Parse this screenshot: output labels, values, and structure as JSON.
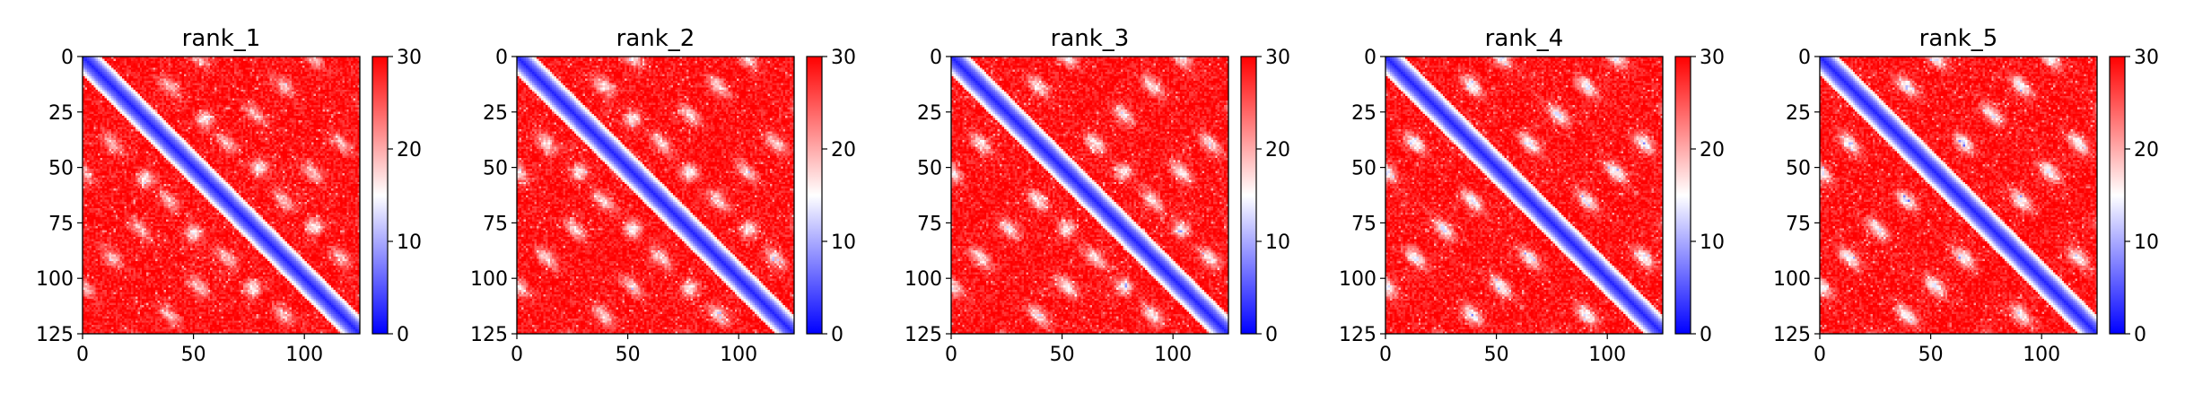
{
  "chart_data": [
    {
      "type": "heatmap",
      "title": "rank_1",
      "xlim": [
        0,
        125
      ],
      "ylim": [
        125,
        0
      ],
      "x_ticks": [
        0,
        50,
        100
      ],
      "y_ticks": [
        0,
        25,
        50,
        75,
        100,
        125
      ],
      "colorbar": {
        "min": 0,
        "max": 30,
        "ticks": [
          0,
          10,
          20,
          30
        ],
        "colors": [
          "#0000ff",
          "#ffffff",
          "#ff0000"
        ]
      },
      "cell_count": 126,
      "diagonal_band": "blue, ~value 2-8 near diagonal",
      "off_diagonal_hotspots": [
        [
          28,
          55
        ],
        [
          50,
          80
        ],
        [
          77,
          105
        ],
        [
          55,
          28
        ],
        [
          80,
          50
        ],
        [
          105,
          77
        ]
      ],
      "hotspot_value": 10
    },
    {
      "type": "heatmap",
      "title": "rank_2",
      "xlim": [
        0,
        125
      ],
      "ylim": [
        125,
        0
      ],
      "x_ticks": [
        0,
        50,
        100
      ],
      "y_ticks": [
        0,
        25,
        50,
        75,
        100,
        125
      ],
      "colorbar": {
        "min": 0,
        "max": 30,
        "ticks": [
          0,
          10,
          20,
          30
        ],
        "colors": [
          "#0000ff",
          "#ffffff",
          "#ff0000"
        ]
      },
      "cell_count": 126,
      "diagonal_band": "blue, ~value 2-8 near diagonal",
      "off_diagonal_hotspots": [
        [
          28,
          52
        ],
        [
          52,
          78
        ],
        [
          78,
          105
        ],
        [
          52,
          28
        ],
        [
          78,
          52
        ],
        [
          105,
          78
        ]
      ],
      "hotspot_value": 12
    },
    {
      "type": "heatmap",
      "title": "rank_3",
      "xlim": [
        0,
        125
      ],
      "ylim": [
        125,
        0
      ],
      "x_ticks": [
        0,
        50,
        100
      ],
      "y_ticks": [
        0,
        25,
        50,
        75,
        100,
        125
      ],
      "colorbar": {
        "min": 0,
        "max": 30,
        "ticks": [
          0,
          10,
          20,
          30
        ],
        "colors": [
          "#0000ff",
          "#ffffff",
          "#ff0000"
        ]
      },
      "cell_count": 126,
      "diagonal_band": "blue, ~value 2-8 near diagonal",
      "off_diagonal_hotspots": [
        [
          52,
          78
        ],
        [
          78,
          104
        ],
        [
          78,
          52
        ],
        [
          104,
          78
        ]
      ],
      "hotspot_value": 13
    },
    {
      "type": "heatmap",
      "title": "rank_4",
      "xlim": [
        0,
        125
      ],
      "ylim": [
        125,
        0
      ],
      "x_ticks": [
        0,
        50,
        100
      ],
      "y_ticks": [
        0,
        25,
        50,
        75,
        100,
        125
      ],
      "colorbar": {
        "min": 0,
        "max": 30,
        "ticks": [
          0,
          10,
          20,
          30
        ],
        "colors": [
          "#0000ff",
          "#ffffff",
          "#ff0000"
        ]
      },
      "cell_count": 126,
      "diagonal_band": "blue, ~value 2-8 near diagonal",
      "off_diagonal_hotspots": [],
      "hotspot_value": 15
    },
    {
      "type": "heatmap",
      "title": "rank_5",
      "xlim": [
        0,
        125
      ],
      "ylim": [
        125,
        0
      ],
      "x_ticks": [
        0,
        50,
        100
      ],
      "y_ticks": [
        0,
        25,
        50,
        75,
        100,
        125
      ],
      "colorbar": {
        "min": 0,
        "max": 30,
        "ticks": [
          0,
          10,
          20,
          30
        ],
        "colors": [
          "#0000ff",
          "#ffffff",
          "#ff0000"
        ]
      },
      "cell_count": 126,
      "diagonal_band": "blue, ~value 2-8 near diagonal",
      "off_diagonal_hotspots": [],
      "hotspot_value": 15
    }
  ]
}
